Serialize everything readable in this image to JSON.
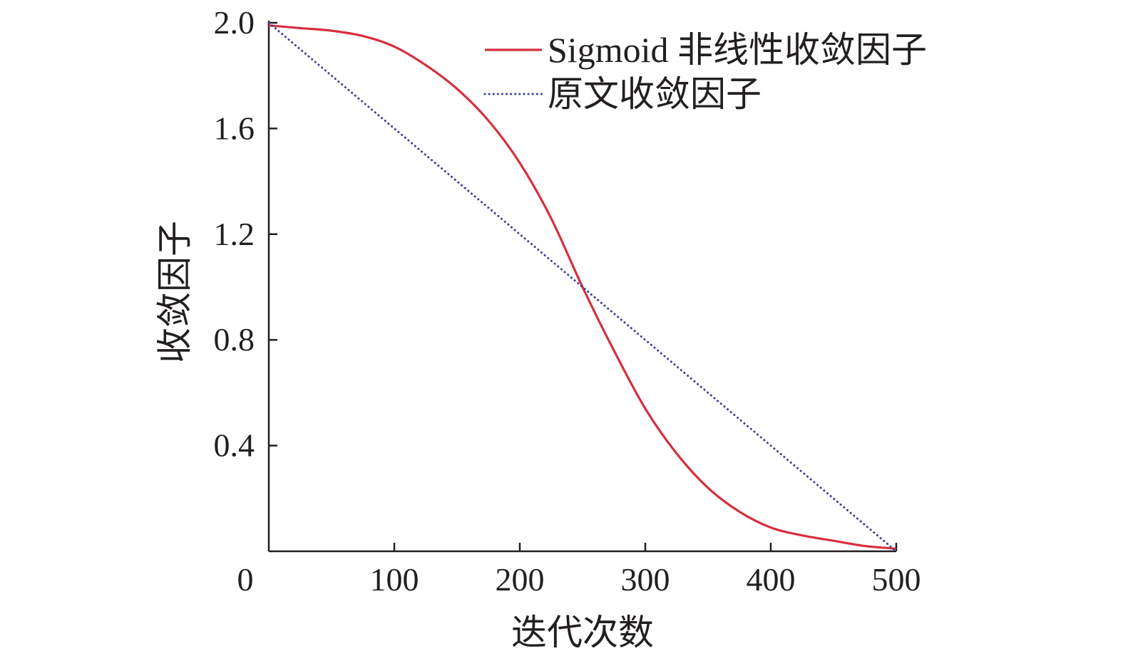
{
  "chart_data": {
    "type": "line",
    "title": "",
    "xlabel": "迭代次数",
    "ylabel": "收敛因子",
    "xlim": [
      0,
      500
    ],
    "ylim": [
      0,
      2.0
    ],
    "x_ticks": [
      0,
      100,
      200,
      300,
      400,
      500
    ],
    "x_tick_labels": [
      "0",
      "100",
      "200",
      "300",
      "400",
      "500"
    ],
    "y_ticks": [
      0.4,
      0.8,
      1.2,
      1.6,
      2.0
    ],
    "y_tick_labels": [
      "0.4",
      "0.8",
      "1.2",
      "1.6",
      "2.0"
    ],
    "grid": false,
    "legend_position": "top-right",
    "series": [
      {
        "name": "Sigmoid 非线性收敛因子",
        "color": "#d62f3c",
        "style": "solid",
        "x": [
          0,
          25,
          50,
          75,
          100,
          125,
          150,
          175,
          200,
          225,
          250,
          275,
          300,
          325,
          350,
          375,
          400,
          425,
          450,
          475,
          500
        ],
        "y": [
          1.99,
          1.98,
          1.97,
          1.95,
          1.91,
          1.84,
          1.75,
          1.63,
          1.47,
          1.26,
          1.0,
          0.76,
          0.54,
          0.37,
          0.24,
          0.15,
          0.09,
          0.06,
          0.04,
          0.02,
          0.01
        ]
      },
      {
        "name": "原文收敛因子",
        "color": "#3a3fa0",
        "style": "dotted",
        "x": [
          0,
          500
        ],
        "y": [
          2.0,
          0.0
        ]
      }
    ]
  }
}
